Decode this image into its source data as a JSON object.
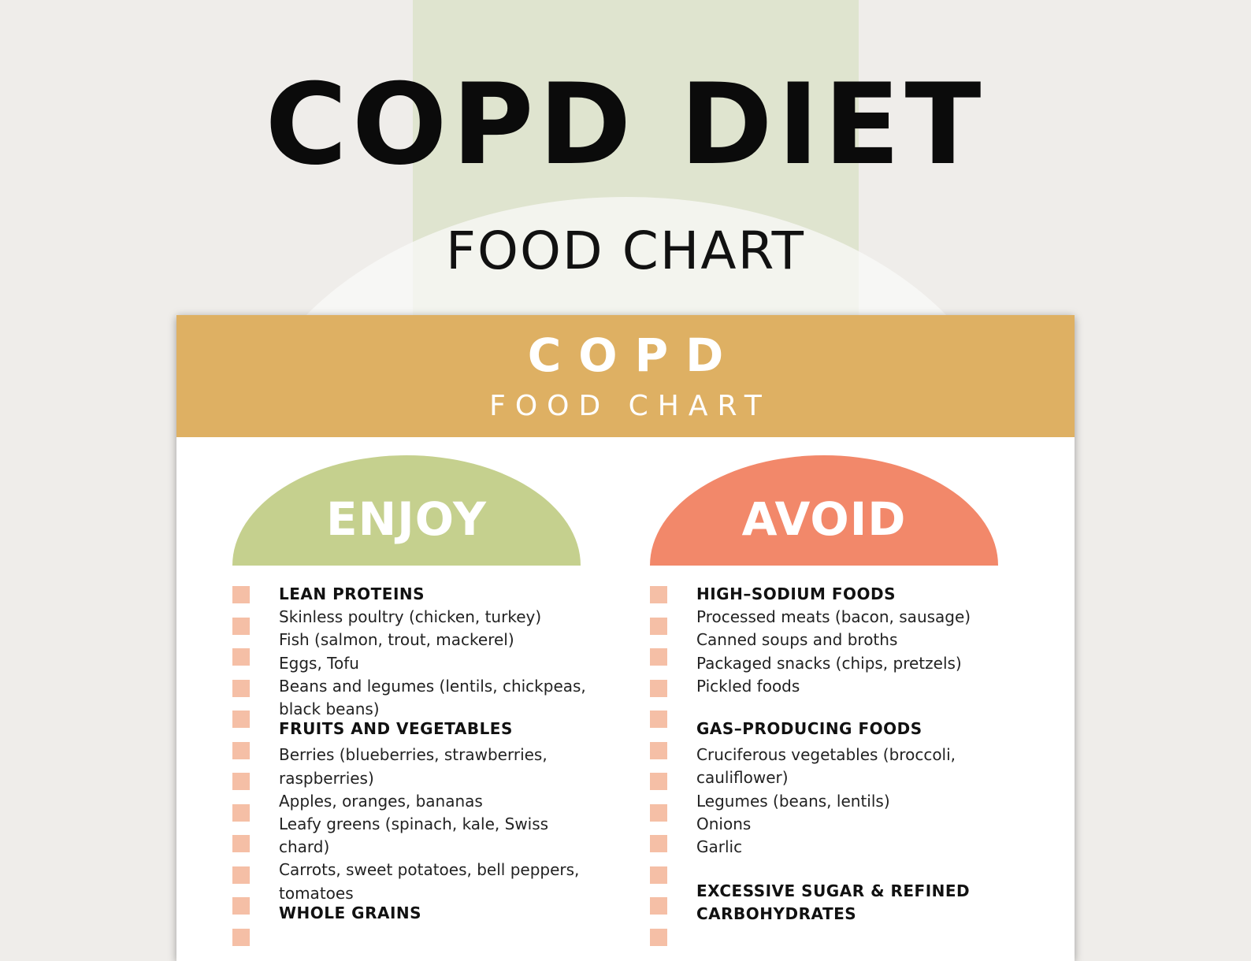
{
  "cover": {
    "title": "COPD DIET",
    "subtitle": "FOOD CHART"
  },
  "sheet": {
    "title": "COPD",
    "subtitle": "FOOD CHART"
  },
  "enjoy": {
    "label": "ENJOY",
    "color": "#c5d08e",
    "lines": [
      "LEAN PROTEINS",
      "Skinless poultry (chicken, turkey)",
      "Fish (salmon, trout, mackerel)",
      "Eggs, Tofu",
      "Beans and legumes (lentils, chickpeas,",
      "black beans)",
      "FRUITS AND VEGETABLES",
      "Berries (blueberries, strawberries,",
      "raspberries)",
      "Apples, oranges, bananas",
      "Leafy greens (spinach, kale, Swiss",
      "chard)",
      "Carrots, sweet potatoes, bell peppers,",
      "tomatoes",
      "WHOLE GRAINS"
    ]
  },
  "avoid": {
    "label": "AVOID",
    "color": "#f2886a",
    "lines": [
      "HIGH–SODIUM FOODS",
      "Processed meats (bacon, sausage)",
      "Canned soups and broths",
      "Packaged snacks (chips, pretzels)",
      "Pickled foods",
      "GAS–PRODUCING FOODS",
      "Cruciferous vegetables (broccoli,",
      "cauliflower)",
      "Legumes (beans, lentils)",
      "Onions",
      "Garlic",
      "EXCESSIVE SUGAR & REFINED",
      "CARBOHYDRATES"
    ]
  },
  "colors": {
    "header": "#deb063",
    "checkbox": "#f5bfa6",
    "background": "#efedea"
  }
}
